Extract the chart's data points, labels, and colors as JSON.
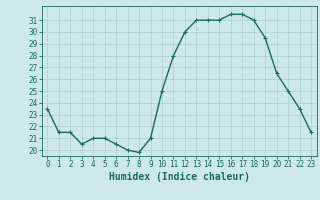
{
  "xlabel": "Humidex (Indice chaleur)",
  "ylabel": "",
  "x": [
    0,
    1,
    2,
    3,
    4,
    5,
    6,
    7,
    8,
    9,
    10,
    11,
    12,
    13,
    14,
    15,
    16,
    17,
    18,
    19,
    20,
    21,
    22,
    23
  ],
  "y": [
    23.5,
    21.5,
    21.5,
    20.5,
    21.0,
    21.0,
    20.5,
    20.0,
    19.8,
    21.0,
    25.0,
    28.0,
    30.0,
    31.0,
    31.0,
    31.0,
    31.5,
    31.5,
    31.0,
    29.5,
    26.5,
    25.0,
    23.5,
    21.5
  ],
  "line_color": "#1a6b5a",
  "marker": "+",
  "marker_size": 3,
  "bg_color": "#cce8e8",
  "grid_color": "#aecece",
  "ylim": [
    19.5,
    32.2
  ],
  "xlim": [
    -0.5,
    23.5
  ],
  "yticks": [
    20,
    21,
    22,
    23,
    24,
    25,
    26,
    27,
    28,
    29,
    30,
    31
  ],
  "xticks": [
    0,
    1,
    2,
    3,
    4,
    5,
    6,
    7,
    8,
    9,
    10,
    11,
    12,
    13,
    14,
    15,
    16,
    17,
    18,
    19,
    20,
    21,
    22,
    23
  ],
  "tick_fontsize": 5.5,
  "label_fontsize": 7.0,
  "line_width": 1.0
}
